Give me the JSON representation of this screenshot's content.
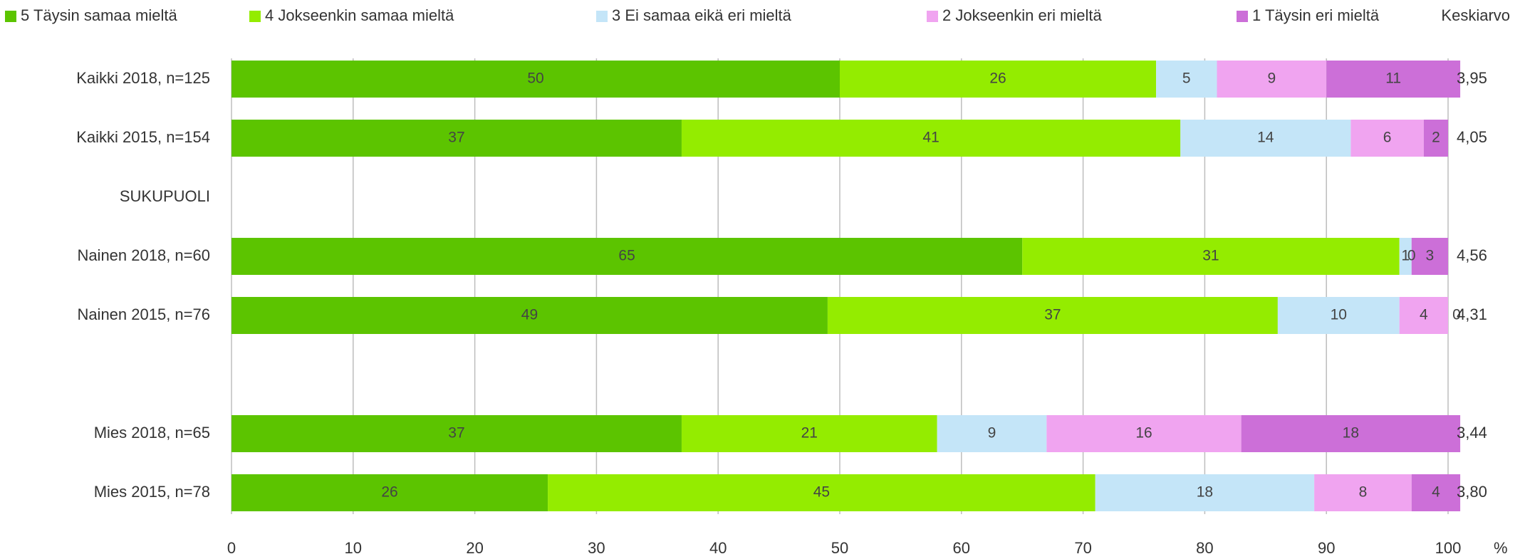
{
  "chart_data": {
    "type": "stacked-bar-horizontal",
    "categories": [
      "Kaikki 2018, n=125",
      "Kaikki 2015, n=154",
      "SUKUPUOLI",
      "Nainen 2018, n=60",
      "Nainen 2015, n=76",
      null,
      "Mies 2018, n=65",
      "Mies 2015, n=78"
    ],
    "series": [
      {
        "name": "5 Täysin samaa mieltä",
        "color": "#5cc400",
        "values": [
          50,
          37,
          null,
          65,
          49,
          null,
          37,
          26
        ]
      },
      {
        "name": "4 Jokseenkin samaa mieltä",
        "color": "#94ec00",
        "values": [
          26,
          41,
          null,
          31,
          37,
          null,
          21,
          45
        ]
      },
      {
        "name": "3 Ei samaa eikä eri mieltä",
        "color": "#c4e5f8",
        "values": [
          5,
          14,
          null,
          1,
          10,
          null,
          9,
          18
        ]
      },
      {
        "name": "2 Jokseenkin eri mieltä",
        "color": "#f0a4f0",
        "values": [
          9,
          6,
          null,
          0,
          4,
          null,
          16,
          8
        ]
      },
      {
        "name": "1 Täysin eri mieltä",
        "color": "#cc6fd8",
        "values": [
          11,
          2,
          null,
          3,
          0,
          null,
          18,
          4
        ]
      }
    ],
    "averages": {
      "title": "Keskiarvo",
      "values": [
        3.95,
        4.05,
        null,
        4.56,
        4.31,
        null,
        3.44,
        3.8
      ],
      "value_labels": [
        "3,95",
        "4,05",
        null,
        "4,56",
        "4,31",
        null,
        "3,44",
        "3,80"
      ]
    },
    "xlim": [
      0,
      100
    ],
    "xticks": [
      0,
      10,
      20,
      30,
      40,
      50,
      60,
      70,
      80,
      90,
      100
    ],
    "xlabel": "%",
    "grid": true
  }
}
